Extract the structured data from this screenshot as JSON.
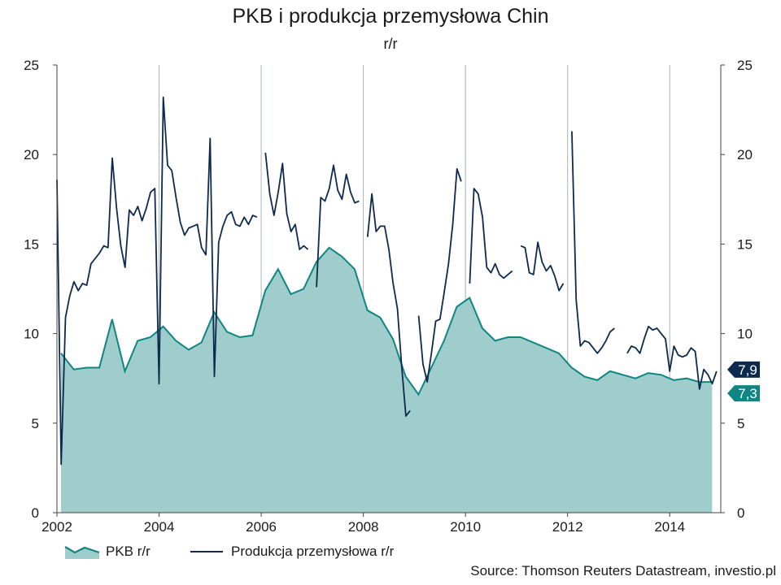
{
  "chart_data": {
    "type": "area",
    "title": "PKB i produkcja przemysłowa Chin",
    "subtitle": "r/r",
    "source": "Source: Thomson Reuters Datastream, investio.pl",
    "ylim": [
      0,
      25
    ],
    "yticks": [
      0,
      5,
      10,
      15,
      20,
      25
    ],
    "xlim": [
      2002.0,
      2015.0
    ],
    "xticks": [
      2002,
      2004,
      2006,
      2008,
      2010,
      2012,
      2014
    ],
    "grid": "vertical",
    "legend_position": "bottom-left",
    "end_labels": [
      {
        "text": "7,9",
        "series": "Produkcja przemysłowa r/r",
        "color": "#0d2a4e"
      },
      {
        "text": "7,3",
        "series": "PKB r/r",
        "color": "#0f8683"
      }
    ],
    "series": [
      {
        "name": "PKB r/r",
        "type": "area",
        "color": "#0f8683",
        "fill": "#9ecdcb",
        "points": [
          [
            2002.08,
            8.9
          ],
          [
            2002.33,
            8.0
          ],
          [
            2002.58,
            8.1
          ],
          [
            2002.83,
            8.1
          ],
          [
            2003.08,
            10.8
          ],
          [
            2003.33,
            7.9
          ],
          [
            2003.58,
            9.6
          ],
          [
            2003.83,
            9.8
          ],
          [
            2004.08,
            10.4
          ],
          [
            2004.33,
            9.6
          ],
          [
            2004.58,
            9.1
          ],
          [
            2004.83,
            9.5
          ],
          [
            2005.08,
            11.2
          ],
          [
            2005.33,
            10.1
          ],
          [
            2005.58,
            9.8
          ],
          [
            2005.83,
            9.9
          ],
          [
            2006.08,
            12.4
          ],
          [
            2006.33,
            13.6
          ],
          [
            2006.58,
            12.2
          ],
          [
            2006.83,
            12.5
          ],
          [
            2007.08,
            14.0
          ],
          [
            2007.33,
            14.8
          ],
          [
            2007.58,
            14.3
          ],
          [
            2007.83,
            13.6
          ],
          [
            2008.08,
            11.3
          ],
          [
            2008.33,
            10.9
          ],
          [
            2008.58,
            9.7
          ],
          [
            2008.83,
            7.6
          ],
          [
            2009.08,
            6.6
          ],
          [
            2009.33,
            8.1
          ],
          [
            2009.58,
            9.6
          ],
          [
            2009.83,
            11.5
          ],
          [
            2010.08,
            12.0
          ],
          [
            2010.33,
            10.3
          ],
          [
            2010.58,
            9.6
          ],
          [
            2010.83,
            9.8
          ],
          [
            2011.08,
            9.8
          ],
          [
            2011.33,
            9.5
          ],
          [
            2011.58,
            9.2
          ],
          [
            2011.83,
            8.9
          ],
          [
            2012.08,
            8.1
          ],
          [
            2012.33,
            7.6
          ],
          [
            2012.58,
            7.4
          ],
          [
            2012.83,
            7.9
          ],
          [
            2013.08,
            7.7
          ],
          [
            2013.33,
            7.5
          ],
          [
            2013.58,
            7.8
          ],
          [
            2013.83,
            7.7
          ],
          [
            2014.08,
            7.4
          ],
          [
            2014.33,
            7.5
          ],
          [
            2014.58,
            7.3
          ],
          [
            2014.83,
            7.3
          ]
        ]
      },
      {
        "name": "Produkcja przemysłowa r/r",
        "type": "line",
        "color": "#0d2a4e",
        "segments": [
          [
            [
              2002.0,
              18.6
            ],
            [
              2002.083,
              2.7
            ],
            [
              2002.167,
              10.9
            ],
            [
              2002.25,
              12.1
            ],
            [
              2002.333,
              12.9
            ],
            [
              2002.417,
              12.4
            ],
            [
              2002.5,
              12.8
            ],
            [
              2002.583,
              12.7
            ],
            [
              2002.667,
              13.9
            ],
            [
              2002.75,
              14.2
            ],
            [
              2002.833,
              14.5
            ],
            [
              2002.917,
              14.9
            ],
            [
              2003.0,
              14.8
            ],
            [
              2003.083,
              19.8
            ],
            [
              2003.167,
              17.0
            ],
            [
              2003.25,
              14.9
            ],
            [
              2003.333,
              13.7
            ],
            [
              2003.417,
              16.9
            ],
            [
              2003.5,
              16.6
            ],
            [
              2003.583,
              17.1
            ],
            [
              2003.667,
              16.3
            ],
            [
              2003.75,
              17.0
            ],
            [
              2003.833,
              17.9
            ],
            [
              2003.917,
              18.1
            ],
            [
              2004.0,
              7.2
            ],
            [
              2004.083,
              23.2
            ],
            [
              2004.167,
              19.4
            ],
            [
              2004.25,
              19.1
            ],
            [
              2004.333,
              17.6
            ],
            [
              2004.417,
              16.2
            ],
            [
              2004.5,
              15.5
            ],
            [
              2004.583,
              15.9
            ],
            [
              2004.667,
              16.0
            ],
            [
              2004.75,
              16.1
            ],
            [
              2004.833,
              14.8
            ],
            [
              2004.917,
              14.4
            ],
            [
              2005.0,
              20.9
            ],
            [
              2005.083,
              7.6
            ],
            [
              2005.167,
              15.1
            ],
            [
              2005.25,
              16.0
            ],
            [
              2005.333,
              16.6
            ],
            [
              2005.417,
              16.8
            ],
            [
              2005.5,
              16.1
            ],
            [
              2005.583,
              16.0
            ],
            [
              2005.667,
              16.5
            ],
            [
              2005.75,
              16.1
            ],
            [
              2005.833,
              16.6
            ],
            [
              2005.917,
              16.5
            ]
          ],
          [
            [
              2006.083,
              20.1
            ],
            [
              2006.167,
              17.8
            ],
            [
              2006.25,
              16.6
            ],
            [
              2006.333,
              17.9
            ],
            [
              2006.417,
              19.5
            ],
            [
              2006.5,
              16.7
            ],
            [
              2006.583,
              15.7
            ],
            [
              2006.667,
              16.1
            ],
            [
              2006.75,
              14.7
            ],
            [
              2006.833,
              14.9
            ],
            [
              2006.917,
              14.7
            ]
          ],
          [
            [
              2007.083,
              12.6
            ],
            [
              2007.167,
              17.6
            ],
            [
              2007.25,
              17.4
            ],
            [
              2007.333,
              18.1
            ],
            [
              2007.417,
              19.4
            ],
            [
              2007.5,
              18.0
            ],
            [
              2007.583,
              17.5
            ],
            [
              2007.667,
              18.9
            ],
            [
              2007.75,
              17.9
            ],
            [
              2007.833,
              17.3
            ],
            [
              2007.917,
              17.4
            ]
          ],
          [
            [
              2008.083,
              15.4
            ],
            [
              2008.167,
              17.8
            ],
            [
              2008.25,
              15.7
            ],
            [
              2008.333,
              16.0
            ],
            [
              2008.417,
              16.0
            ],
            [
              2008.5,
              14.7
            ],
            [
              2008.583,
              12.8
            ],
            [
              2008.667,
              11.4
            ],
            [
              2008.75,
              8.2
            ],
            [
              2008.833,
              5.4
            ],
            [
              2008.917,
              5.7
            ]
          ],
          [
            [
              2009.083,
              11.0
            ],
            [
              2009.167,
              8.3
            ],
            [
              2009.25,
              7.3
            ],
            [
              2009.333,
              8.9
            ],
            [
              2009.417,
              10.7
            ],
            [
              2009.5,
              10.8
            ],
            [
              2009.583,
              12.3
            ],
            [
              2009.667,
              13.9
            ],
            [
              2009.75,
              16.1
            ],
            [
              2009.833,
              19.2
            ],
            [
              2009.917,
              18.5
            ]
          ],
          [
            [
              2010.083,
              12.8
            ],
            [
              2010.167,
              18.1
            ],
            [
              2010.25,
              17.8
            ],
            [
              2010.333,
              16.5
            ],
            [
              2010.417,
              13.7
            ],
            [
              2010.5,
              13.4
            ],
            [
              2010.583,
              13.9
            ],
            [
              2010.667,
              13.3
            ],
            [
              2010.75,
              13.1
            ],
            [
              2010.833,
              13.3
            ],
            [
              2010.917,
              13.5
            ]
          ],
          [
            [
              2011.083,
              14.9
            ],
            [
              2011.167,
              14.8
            ],
            [
              2011.25,
              13.4
            ],
            [
              2011.333,
              13.3
            ],
            [
              2011.417,
              15.1
            ],
            [
              2011.5,
              14.0
            ],
            [
              2011.583,
              13.5
            ],
            [
              2011.667,
              13.8
            ],
            [
              2011.75,
              13.2
            ],
            [
              2011.833,
              12.4
            ],
            [
              2011.917,
              12.8
            ]
          ],
          [
            [
              2012.083,
              21.3
            ],
            [
              2012.167,
              11.9
            ],
            [
              2012.25,
              9.3
            ],
            [
              2012.333,
              9.6
            ],
            [
              2012.417,
              9.5
            ],
            [
              2012.5,
              9.2
            ],
            [
              2012.583,
              8.9
            ],
            [
              2012.667,
              9.2
            ],
            [
              2012.75,
              9.6
            ],
            [
              2012.833,
              10.1
            ],
            [
              2012.917,
              10.3
            ]
          ],
          [
            [
              2013.167,
              8.9
            ],
            [
              2013.25,
              9.3
            ],
            [
              2013.333,
              9.2
            ],
            [
              2013.417,
              8.9
            ],
            [
              2013.5,
              9.7
            ],
            [
              2013.583,
              10.4
            ],
            [
              2013.667,
              10.2
            ],
            [
              2013.75,
              10.3
            ],
            [
              2013.833,
              10.0
            ],
            [
              2013.917,
              9.7
            ],
            [
              2014.0,
              7.9
            ],
            [
              2014.083,
              9.3
            ],
            [
              2014.167,
              8.8
            ],
            [
              2014.25,
              8.7
            ],
            [
              2014.333,
              8.8
            ],
            [
              2014.417,
              9.2
            ],
            [
              2014.5,
              9.0
            ],
            [
              2014.583,
              6.9
            ],
            [
              2014.667,
              8.0
            ],
            [
              2014.75,
              7.7
            ],
            [
              2014.833,
              7.2
            ],
            [
              2014.917,
              7.9
            ]
          ]
        ]
      }
    ]
  }
}
